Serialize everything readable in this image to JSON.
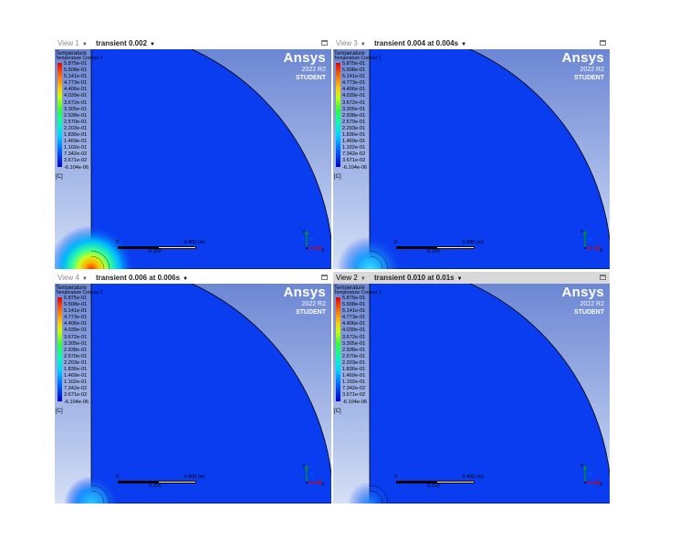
{
  "app": {
    "brand": "Ansys",
    "version": "2022 R2",
    "edition": "STUDENT"
  },
  "legend": {
    "title": "Temperature",
    "subtitle": "Temperature Contour 1",
    "ticks": [
      "5.875e-01",
      "5.508e-01",
      "5.141e-01",
      "4.773e-01",
      "4.406e-01",
      "4.039e-01",
      "3.672e-01",
      "3.305e-01",
      "2.938e-01",
      "2.570e-01",
      "2.203e-01",
      "1.836e-01",
      "1.469e-01",
      "1.102e-01",
      "7.342e-02",
      "3.671e-02",
      "-6.104e-06"
    ],
    "unit": "[C]"
  },
  "scale": {
    "zero": "0",
    "max": "0.400 (m)",
    "mid": "0.200"
  },
  "triad": {
    "y": "Y",
    "x": "X"
  },
  "colors": {
    "domain_fill": "#0a3cf0",
    "outline": "#000000",
    "background_top": "#6b86d4",
    "background_bottom": "#d6e0f6"
  },
  "views": [
    {
      "name": "View 1",
      "title": "transient 0.002",
      "active": false,
      "hotspot": "large"
    },
    {
      "name": "View 3",
      "title": "transient 0.004 at 0.004s",
      "active": false,
      "hotspot": "medium"
    },
    {
      "name": "View 4",
      "title": "transient 0.006 at 0.006s",
      "active": false,
      "hotspot": "small"
    },
    {
      "name": "View 2",
      "title": "transient 0.010 at 0.01s",
      "active": true,
      "hotspot": "faint"
    }
  ]
}
